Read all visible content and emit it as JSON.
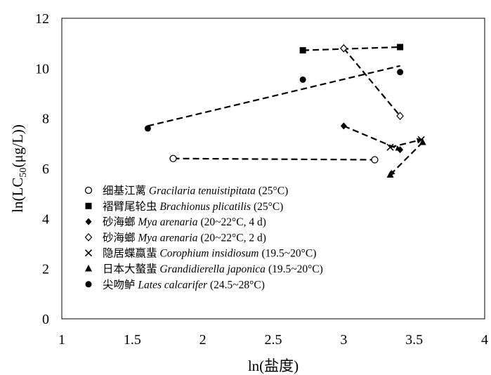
{
  "chart_data": {
    "type": "scatter",
    "xlabel": "ln(盐度)",
    "ylabel": "ln(LC50(μg/L))",
    "ylabel_prefix": "ln(LC",
    "ylabel_sub": "50",
    "ylabel_suffix": "(μg/L))",
    "xlim": [
      1,
      4
    ],
    "ylim": [
      0,
      12
    ],
    "xticks": [
      "1",
      "1.5",
      "2",
      "2.5",
      "3",
      "3.5",
      "4"
    ],
    "yticks": [
      "0",
      "2",
      "4",
      "6",
      "8",
      "10",
      "12"
    ],
    "grid": false,
    "legend_position": "bottom-left",
    "series": [
      {
        "name": "细基江蓠 Gracilaria tenuistipitata (25°C)",
        "name_cn": "细基江蓠",
        "name_latin": "Gracilaria tenuistipitata",
        "name_cond": "(25°C)",
        "marker": "circle-open",
        "line": "dashed",
        "x": [
          1.79,
          3.22
        ],
        "y": [
          6.4,
          6.35
        ]
      },
      {
        "name": "褶臂尾轮虫 Brachionus plicatilis (25°C)",
        "name_cn": "褶臂尾轮虫",
        "name_latin": "Brachionus plicatilis",
        "name_cond": "(25°C)",
        "marker": "square",
        "line": "dashed",
        "x": [
          2.71,
          3.4
        ],
        "y": [
          10.72,
          10.85
        ]
      },
      {
        "name": "砂海螂 Mya arenaria (20~22°C, 4 d)",
        "name_cn": "砂海螂",
        "name_latin": "Mya arenaria",
        "name_cond": "(20~22°C, 4 d)",
        "marker": "diamond",
        "line": "dashed",
        "arrow": true,
        "x": [
          3.0,
          3.4
        ],
        "y": [
          7.7,
          6.75
        ]
      },
      {
        "name": "砂海螂 Mya arenaria (20~22°C, 2 d)",
        "name_cn": "砂海螂",
        "name_latin": "Mya arenaria",
        "name_cond": "(20~22°C, 2 d)",
        "marker": "diamond-open",
        "line": "dashed",
        "x": [
          3.0,
          3.4
        ],
        "y": [
          10.8,
          8.1
        ]
      },
      {
        "name": "隐居蝶蠃蜚 Corophium insidiosum (19.5~20°C)",
        "name_cn": "隐居蝶蠃蜚",
        "name_latin": "Corophium insidiosum",
        "name_cond": "(19.5~20°C)",
        "marker": "x",
        "line": "dashed",
        "arrow": true,
        "x": [
          3.33,
          3.55
        ],
        "y": [
          6.85,
          7.15
        ]
      },
      {
        "name": "日本大螯蜚 Grandidierella japonica (19.5~20°C)",
        "name_cn": "日本大螯蜚",
        "name_latin": "Grandidierella japonica",
        "name_cond": "(19.5~20°C)",
        "marker": "triangle",
        "line": "dashed",
        "arrow": true,
        "x": [
          3.56,
          3.33
        ],
        "y": [
          7.05,
          5.75
        ]
      },
      {
        "name": "尖吻鲈 Lates calcarifer (24.5~28°C)",
        "name_cn": "尖吻鲈",
        "name_latin": "Lates calcarifer",
        "name_cond": "(24.5~28°C)",
        "marker": "circle",
        "line": "dashed",
        "x": [
          1.61,
          2.71,
          3.4
        ],
        "y": [
          7.6,
          9.55,
          9.85
        ],
        "trend": {
          "x": [
            1.61,
            3.4
          ],
          "y": [
            7.7,
            10.1
          ]
        }
      }
    ]
  }
}
